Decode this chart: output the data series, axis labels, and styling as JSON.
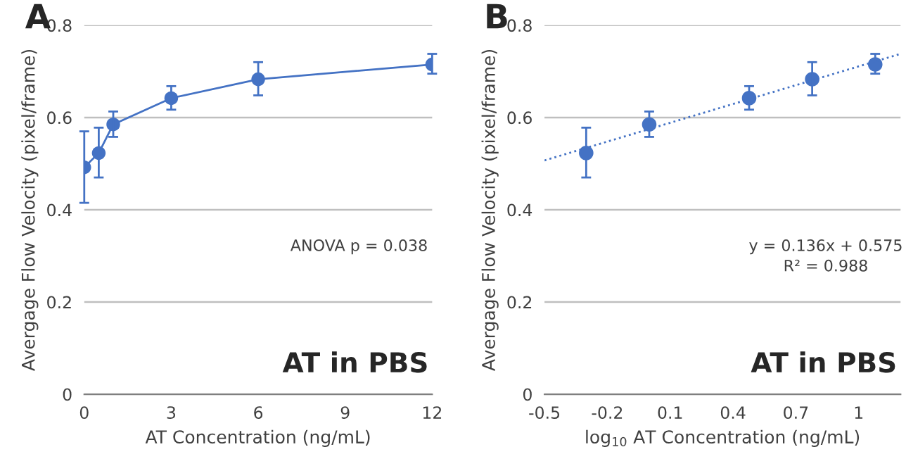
{
  "chart_data": [
    {
      "type": "line",
      "title": "A",
      "xlabel": "AT Concentration (ng/mL)",
      "ylabel": "Avergage Flow Velocity (pixel/frame)",
      "x": [
        0,
        0.5,
        1,
        3,
        6,
        12
      ],
      "series": [
        {
          "color": "#4472c4",
          "values": [
            0.492,
            0.523,
            0.585,
            0.642,
            0.683,
            0.715
          ],
          "errors": [
            [
              0.415,
              0.57
            ],
            [
              0.47,
              0.578
            ],
            [
              0.558,
              0.613
            ],
            [
              0.617,
              0.668
            ],
            [
              0.648,
              0.72
            ],
            [
              0.695,
              0.738
            ]
          ],
          "marker": "circle",
          "line_style": "solid"
        }
      ],
      "xlim": [
        0,
        12
      ],
      "xticks": [
        0,
        3,
        6,
        9,
        12
      ],
      "ylim": [
        0,
        0.8
      ],
      "yticks": [
        0,
        0.2,
        0.4,
        0.6,
        0.8
      ],
      "grid": "y",
      "annotations": [
        "ANOVA p = 0.038",
        "AT in PBS"
      ]
    },
    {
      "type": "scatter",
      "title": "B",
      "xlabel": "log$_{10}$ AT Concentration (ng/mL)",
      "ylabel": "Avergage Flow Velocity (pixel/frame)",
      "series": [
        {
          "type": "line",
          "color": "#4472c4",
          "x": [
            -0.5,
            1.2
          ],
          "values": [
            0.507,
            0.738
          ],
          "line_style": "dotted",
          "marker": "none"
        },
        {
          "color": "#4472c4",
          "x": [
            -0.301,
            0,
            0.477,
            0.778,
            1.079
          ],
          "values": [
            0.523,
            0.585,
            0.642,
            0.683,
            0.715
          ],
          "errors": [
            [
              0.47,
              0.578
            ],
            [
              0.558,
              0.613
            ],
            [
              0.617,
              0.668
            ],
            [
              0.648,
              0.72
            ],
            [
              0.695,
              0.738
            ]
          ],
          "marker": "circle"
        }
      ],
      "xlim": [
        -0.5,
        1.2
      ],
      "xticks": [
        -0.5,
        -0.2,
        0.1,
        0.4,
        0.7,
        1
      ],
      "ylim": [
        0,
        0.8
      ],
      "yticks": [
        0,
        0.2,
        0.4,
        0.6,
        0.8
      ],
      "grid": "y",
      "annotations": [
        "y = 0.136x + 0.575",
        "R² = 0.988",
        "AT in PBS"
      ]
    }
  ]
}
